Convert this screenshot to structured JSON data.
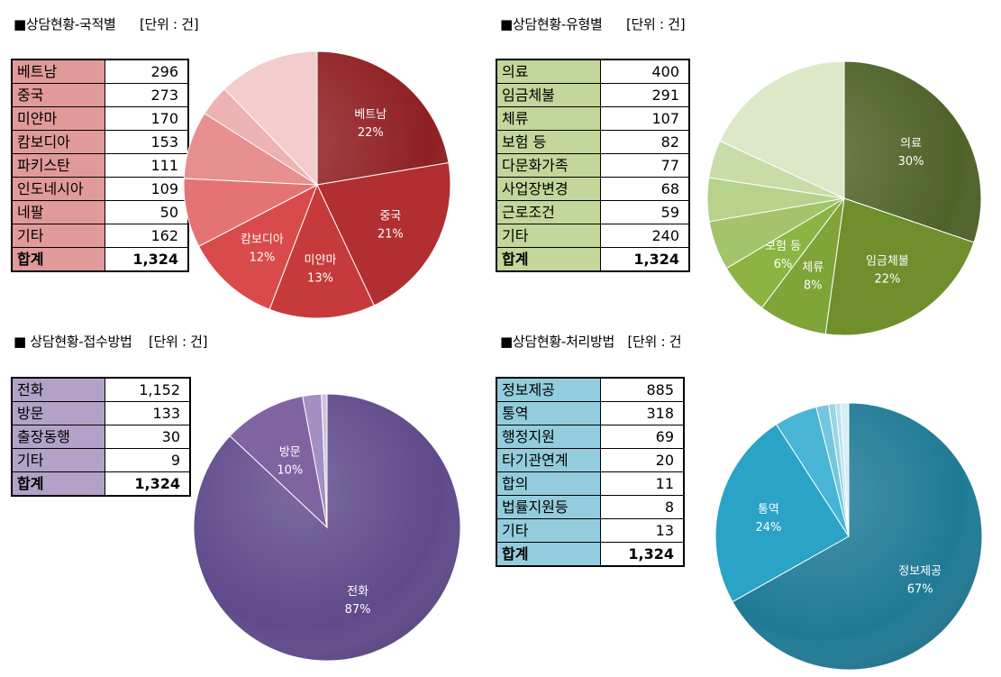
{
  "panels": [
    {
      "title": "■상담현황-국적별",
      "unit": "[단위 : 건]",
      "label_color": "#e09a9a",
      "rows": [
        {
          "label": "베트남",
          "value": "296"
        },
        {
          "label": "중국",
          "value": "273"
        },
        {
          "label": "미얀마",
          "value": "170"
        },
        {
          "label": "캄보디아",
          "value": "153"
        },
        {
          "label": "파키스탄",
          "value": "111"
        },
        {
          "label": "인도네시아",
          "value": "109"
        },
        {
          "label": "네팔",
          "value": "50"
        },
        {
          "label": "기타",
          "value": "162"
        }
      ],
      "total": {
        "label": "합계",
        "value": "1,324"
      }
    },
    {
      "title": "■상담현황-유형별",
      "unit": "[단위 : 건]",
      "label_color": "#c3d69b",
      "rows": [
        {
          "label": "의료",
          "value": "400"
        },
        {
          "label": "임금체불",
          "value": "291"
        },
        {
          "label": "체류",
          "value": "107"
        },
        {
          "label": "보험 등",
          "value": "82"
        },
        {
          "label": "다문화가족",
          "value": "77"
        },
        {
          "label": "사업장변경",
          "value": "68"
        },
        {
          "label": "근로조건",
          "value": "59"
        },
        {
          "label": "기타",
          "value": "240"
        }
      ],
      "total": {
        "label": "합계",
        "value": "1,324"
      }
    },
    {
      "title": "■ 상담현황-접수방법",
      "unit": "[단위 : 건]",
      "label_color": "#b3a2c7",
      "rows": [
        {
          "label": "전화",
          "value": "1,152"
        },
        {
          "label": "방문",
          "value": "133"
        },
        {
          "label": "출장동행",
          "value": "30"
        },
        {
          "label": "기타",
          "value": "9"
        }
      ],
      "total": {
        "label": "합계",
        "value": "1,324"
      }
    },
    {
      "title": "■상담현황-처리방법",
      "unit": "[단위 : 건",
      "label_color": "#93cddd",
      "rows": [
        {
          "label": "정보제공",
          "value": "885"
        },
        {
          "label": "통역",
          "value": "318"
        },
        {
          "label": "행정지원",
          "value": "69"
        },
        {
          "label": "타기관연계",
          "value": "20"
        },
        {
          "label": "합의",
          "value": "11"
        },
        {
          "label": "법률지원등",
          "value": "8"
        },
        {
          "label": "기타",
          "value": "13"
        }
      ],
      "total": {
        "label": "합계",
        "value": "1,324"
      }
    }
  ],
  "chart_data": [
    {
      "type": "pie",
      "categories": [
        "베트남",
        "중국",
        "미얀마",
        "캄보디아",
        "파키스탄",
        "인도네시아",
        "네팔",
        "기타"
      ],
      "values": [
        296,
        273,
        170,
        153,
        111,
        109,
        50,
        162
      ],
      "slice_labels": [
        "베트남",
        "중국",
        "미얀마",
        "캄보디아",
        "",
        "",
        "",
        ""
      ],
      "percent_labels": [
        "22%",
        "21%",
        "13%",
        "12%",
        "",
        "",
        "",
        ""
      ],
      "colors": [
        "#8f1f22",
        "#b12f31",
        "#c63a3c",
        "#d94a4a",
        "#e67373",
        "#e88f8f",
        "#edb3b3",
        "#f3cccc"
      ]
    },
    {
      "type": "pie",
      "categories": [
        "의료",
        "임금체불",
        "체류",
        "보험 등",
        "다문화가족",
        "사업장변경",
        "근로조건",
        "기타"
      ],
      "values": [
        400,
        291,
        107,
        82,
        77,
        68,
        59,
        240
      ],
      "slice_labels": [
        "의료",
        "임금체불",
        "체류",
        "보험 등",
        "",
        "",
        "",
        ""
      ],
      "percent_labels": [
        "30%",
        "22%",
        "8%",
        "6%",
        "",
        "",
        "",
        ""
      ],
      "colors": [
        "#4f6228",
        "#6e8f2c",
        "#7fa437",
        "#8cb443",
        "#a3c46a",
        "#b7d28a",
        "#c9dca8",
        "#dde8c8"
      ]
    },
    {
      "type": "pie",
      "categories": [
        "전화",
        "방문",
        "출장동행",
        "기타"
      ],
      "values": [
        1152,
        133,
        30,
        9
      ],
      "slice_labels": [
        "전화",
        "방문",
        "",
        ""
      ],
      "percent_labels": [
        "87%",
        "10%",
        "",
        ""
      ],
      "colors": [
        "#5f4a8b",
        "#8064a2",
        "#a38fc2",
        "#cfc3e0"
      ]
    },
    {
      "type": "pie",
      "categories": [
        "정보제공",
        "통역",
        "행정지원",
        "타기관연계",
        "합의",
        "법률지원등",
        "기타"
      ],
      "values": [
        885,
        318,
        69,
        20,
        11,
        8,
        13
      ],
      "slice_labels": [
        "정보제공",
        "통역",
        "",
        "",
        "",
        "",
        ""
      ],
      "percent_labels": [
        "67%",
        "24%",
        "",
        "",
        "",
        "",
        ""
      ],
      "colors": [
        "#1f7a96",
        "#2aa3c6",
        "#47b5d3",
        "#74c6de",
        "#9ad4e6",
        "#b9e1ee",
        "#d6eef5"
      ]
    }
  ]
}
